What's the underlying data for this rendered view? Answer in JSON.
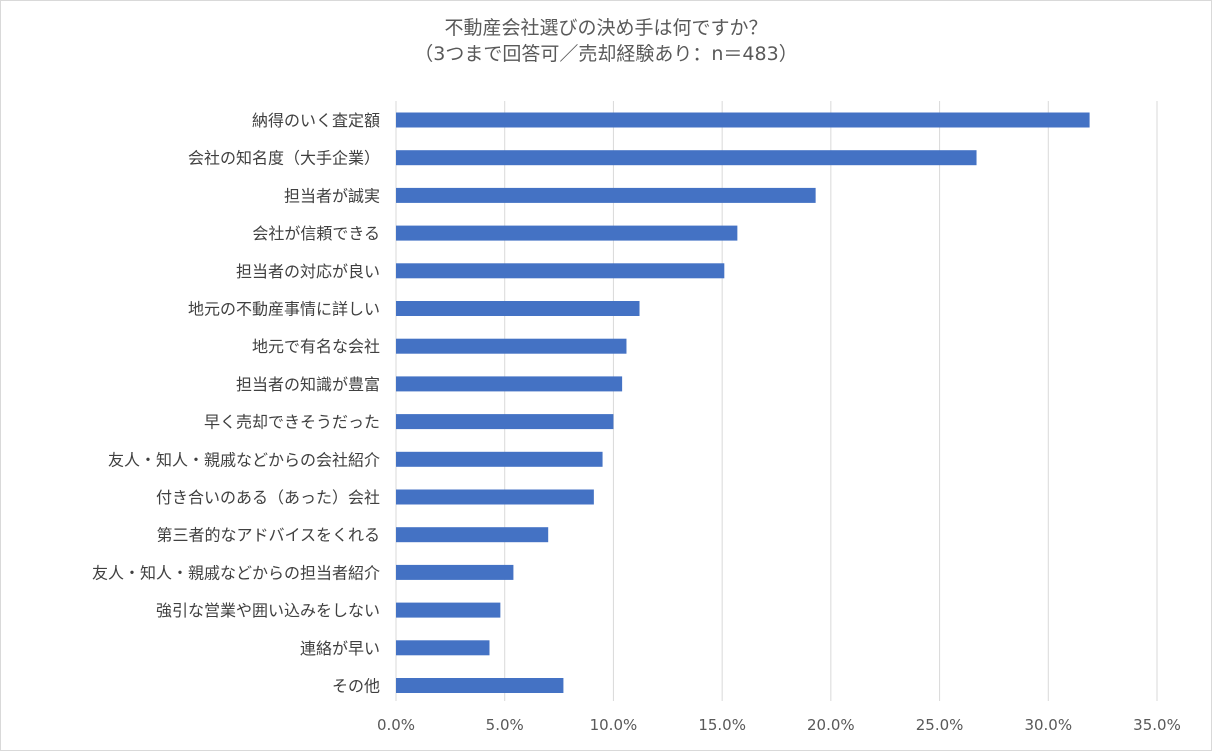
{
  "chart_data": {
    "type": "bar",
    "orientation": "horizontal",
    "title": "不動産会社選びの決め手は何ですか？",
    "subtitle": "（3つまで回答可／売却経験あり：n＝483）",
    "xlabel": "",
    "ylabel": "",
    "xlim": [
      0,
      35
    ],
    "x_ticks": [
      "0.0%",
      "5.0%",
      "10.0%",
      "15.0%",
      "20.0%",
      "25.0%",
      "30.0%",
      "35.0%"
    ],
    "grid": "vertical",
    "legend": "none",
    "bar_color": "#4472c4",
    "categories": [
      "納得のいく査定額",
      "会社の知名度（大手企業）",
      "担当者が誠実",
      "会社が信頼できる",
      "担当者の対応が良い",
      "地元の不動産事情に詳しい",
      "地元で有名な会社",
      "担当者の知識が豊富",
      "早く売却できそうだった",
      "友人・知人・親戚などからの会社紹介",
      "付き合いのある（あった）会社",
      "第三者的なアドバイスをくれる",
      "友人・知人・親戚などからの担当者紹介",
      "強引な営業や囲い込みをしない",
      "連絡が早い",
      "その他"
    ],
    "values": [
      31.9,
      26.7,
      19.3,
      15.7,
      15.1,
      11.2,
      10.6,
      10.4,
      10.0,
      9.5,
      9.1,
      7.0,
      5.4,
      4.8,
      4.3,
      7.7
    ]
  }
}
